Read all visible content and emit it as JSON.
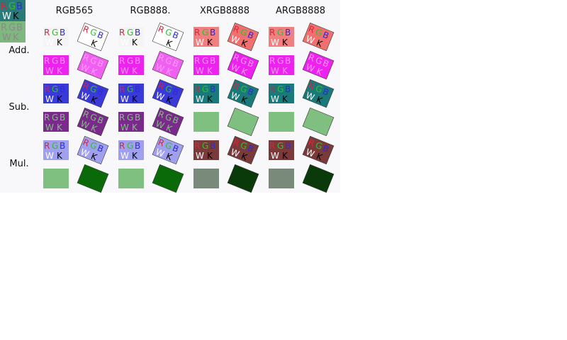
{
  "columns": [
    "RGB565",
    "RGB888.",
    "XRGB8888",
    "ARGB8888"
  ],
  "row_labels": [
    "Add.",
    "Sub.",
    "Mul."
  ],
  "glyphs": {
    "row1": [
      "R",
      "G",
      "B"
    ],
    "row2": [
      "W",
      "K"
    ]
  },
  "colors": {
    "panel_bg": "#f8f8fa",
    "ref_top_bg": "#2a7a7a",
    "ref_bottom_bg": "#7fb87f",
    "red": "#e0203a",
    "green": "#30c030",
    "blue": "#2a2ad8",
    "white": "#ffffff",
    "black": "#000000"
  },
  "rows": [
    {
      "mode": "Add.",
      "variant": "top",
      "cells": [
        {
          "bg": "#f4f4f4",
          "fg": "#ffffff"
        },
        {
          "bg": "#ffffff",
          "fg": "#ffffff"
        },
        {
          "bg": "#f4f4f4",
          "fg": "#ffffff"
        },
        {
          "bg": "#ffffff",
          "fg": "#ffffff"
        },
        {
          "bg": "#f08080",
          "fg": "#ffffff"
        },
        {
          "bg": "#f07070",
          "fg": "#ffffff"
        },
        {
          "bg": "#f08080",
          "fg": "#ffffff"
        },
        {
          "bg": "#f07070",
          "fg": "#ffffff"
        }
      ]
    },
    {
      "mode": "Add.",
      "variant": "bottom",
      "cells": [
        {
          "bg": "#ee22ee",
          "fg": "#ff99ff"
        },
        {
          "bg": "#f060f0",
          "fg": "#ff99ff"
        },
        {
          "bg": "#ee22ee",
          "fg": "#ff99ff"
        },
        {
          "bg": "#f060f0",
          "fg": "#ff99ff"
        },
        {
          "bg": "#ee22ee",
          "fg": "#ff99ff"
        },
        {
          "bg": "#ee22ee",
          "fg": "#ff99ff"
        },
        {
          "bg": "#ee22ee",
          "fg": "#ff99ff"
        },
        {
          "bg": "#ee22ee",
          "fg": "#ff99ff"
        }
      ]
    },
    {
      "mode": "Sub.",
      "variant": "top",
      "cells": [
        {
          "bg": "#3a3ad8",
          "fg": "#ffffff"
        },
        {
          "bg": "#3a3ad8",
          "fg": "#ffffff"
        },
        {
          "bg": "#3a3ad8",
          "fg": "#ffffff"
        },
        {
          "bg": "#3a3ad8",
          "fg": "#ffffff"
        },
        {
          "bg": "#1a7a7a",
          "fg": "#ffffff"
        },
        {
          "bg": "#1a7a7a",
          "fg": "#ffffff"
        },
        {
          "bg": "#1a7a7a",
          "fg": "#ffffff"
        },
        {
          "bg": "#1a7a7a",
          "fg": "#ffffff"
        }
      ]
    },
    {
      "mode": "Sub.",
      "variant": "bottom",
      "cells": [
        {
          "bg": "#7a2a8a",
          "fg": "#7fbf7f"
        },
        {
          "bg": "#7a2a8a",
          "fg": "#7fbf7f"
        },
        {
          "bg": "#7a2a8a",
          "fg": "#7fbf7f"
        },
        {
          "bg": "#7a2a8a",
          "fg": "#7fbf7f"
        },
        {
          "bg": "#7fbf7f",
          "fg": "#7fbf7f"
        },
        {
          "bg": "#7fbf7f",
          "fg": "#7fbf7f"
        },
        {
          "bg": "#7fbf7f",
          "fg": "#7fbf7f"
        },
        {
          "bg": "#7fbf7f",
          "fg": "#7fbf7f"
        }
      ]
    },
    {
      "mode": "Mul.",
      "variant": "top",
      "cells": [
        {
          "bg": "#a0a0ee",
          "fg": "#ffffff"
        },
        {
          "bg": "#a0a0ee",
          "fg": "#ffffff"
        },
        {
          "bg": "#a0a0ee",
          "fg": "#ffffff"
        },
        {
          "bg": "#a0a0ee",
          "fg": "#ffffff"
        },
        {
          "bg": "#7a3a3a",
          "fg": "#ffffff"
        },
        {
          "bg": "#7a3a3a",
          "fg": "#ffffff"
        },
        {
          "bg": "#7a3a3a",
          "fg": "#ffffff"
        },
        {
          "bg": "#7a3a3a",
          "fg": "#ffffff"
        }
      ]
    },
    {
      "mode": "Mul.",
      "variant": "bottom",
      "cells": [
        {
          "bg": "#7fbf7f",
          "fg": "#7fbf7f"
        },
        {
          "bg": "#0a6a0a",
          "fg": "#0a6a0a"
        },
        {
          "bg": "#7fbf7f",
          "fg": "#7fbf7f"
        },
        {
          "bg": "#0a6a0a",
          "fg": "#0a6a0a"
        },
        {
          "bg": "#7a8a7a",
          "fg": "#7a8a7a"
        },
        {
          "bg": "#0a3a0a",
          "fg": "#0a3a0a"
        },
        {
          "bg": "#7a8a7a",
          "fg": "#7a8a7a"
        },
        {
          "bg": "#0a3a0a",
          "fg": "#0a3a0a"
        }
      ]
    }
  ]
}
